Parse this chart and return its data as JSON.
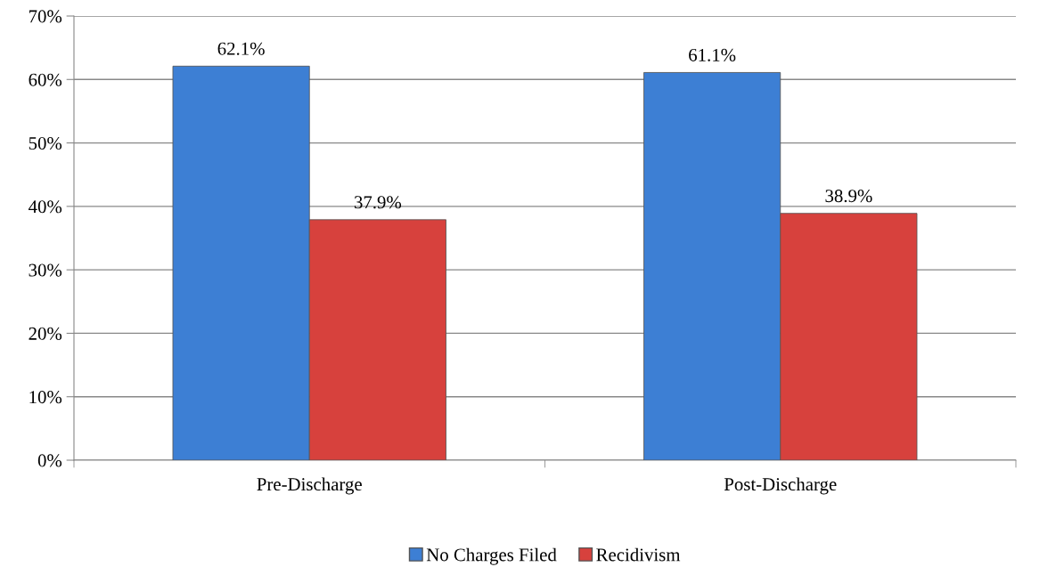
{
  "chart_data": {
    "type": "bar",
    "categories": [
      "Pre-Discharge",
      "Post-Discharge"
    ],
    "series": [
      {
        "name": "No Charges Filed",
        "color": "#3d7fd4",
        "values": [
          62.1,
          61.1
        ],
        "value_labels": [
          "62.1%",
          "61.1%"
        ]
      },
      {
        "name": "Recidivism",
        "color": "#d7413d",
        "values": [
          37.9,
          38.9
        ],
        "value_labels": [
          "37.9%",
          "38.9%"
        ]
      }
    ],
    "ylim": [
      0,
      70
    ],
    "yticks": [
      {
        "value": 0,
        "label": "0%"
      },
      {
        "value": 10,
        "label": "10%"
      },
      {
        "value": 20,
        "label": "20%"
      },
      {
        "value": 30,
        "label": "30%"
      },
      {
        "value": 40,
        "label": "40%"
      },
      {
        "value": 50,
        "label": "50%"
      },
      {
        "value": 60,
        "label": "60%"
      },
      {
        "value": 70,
        "label": "70%"
      }
    ],
    "grid": "y",
    "legend": "bottom"
  }
}
